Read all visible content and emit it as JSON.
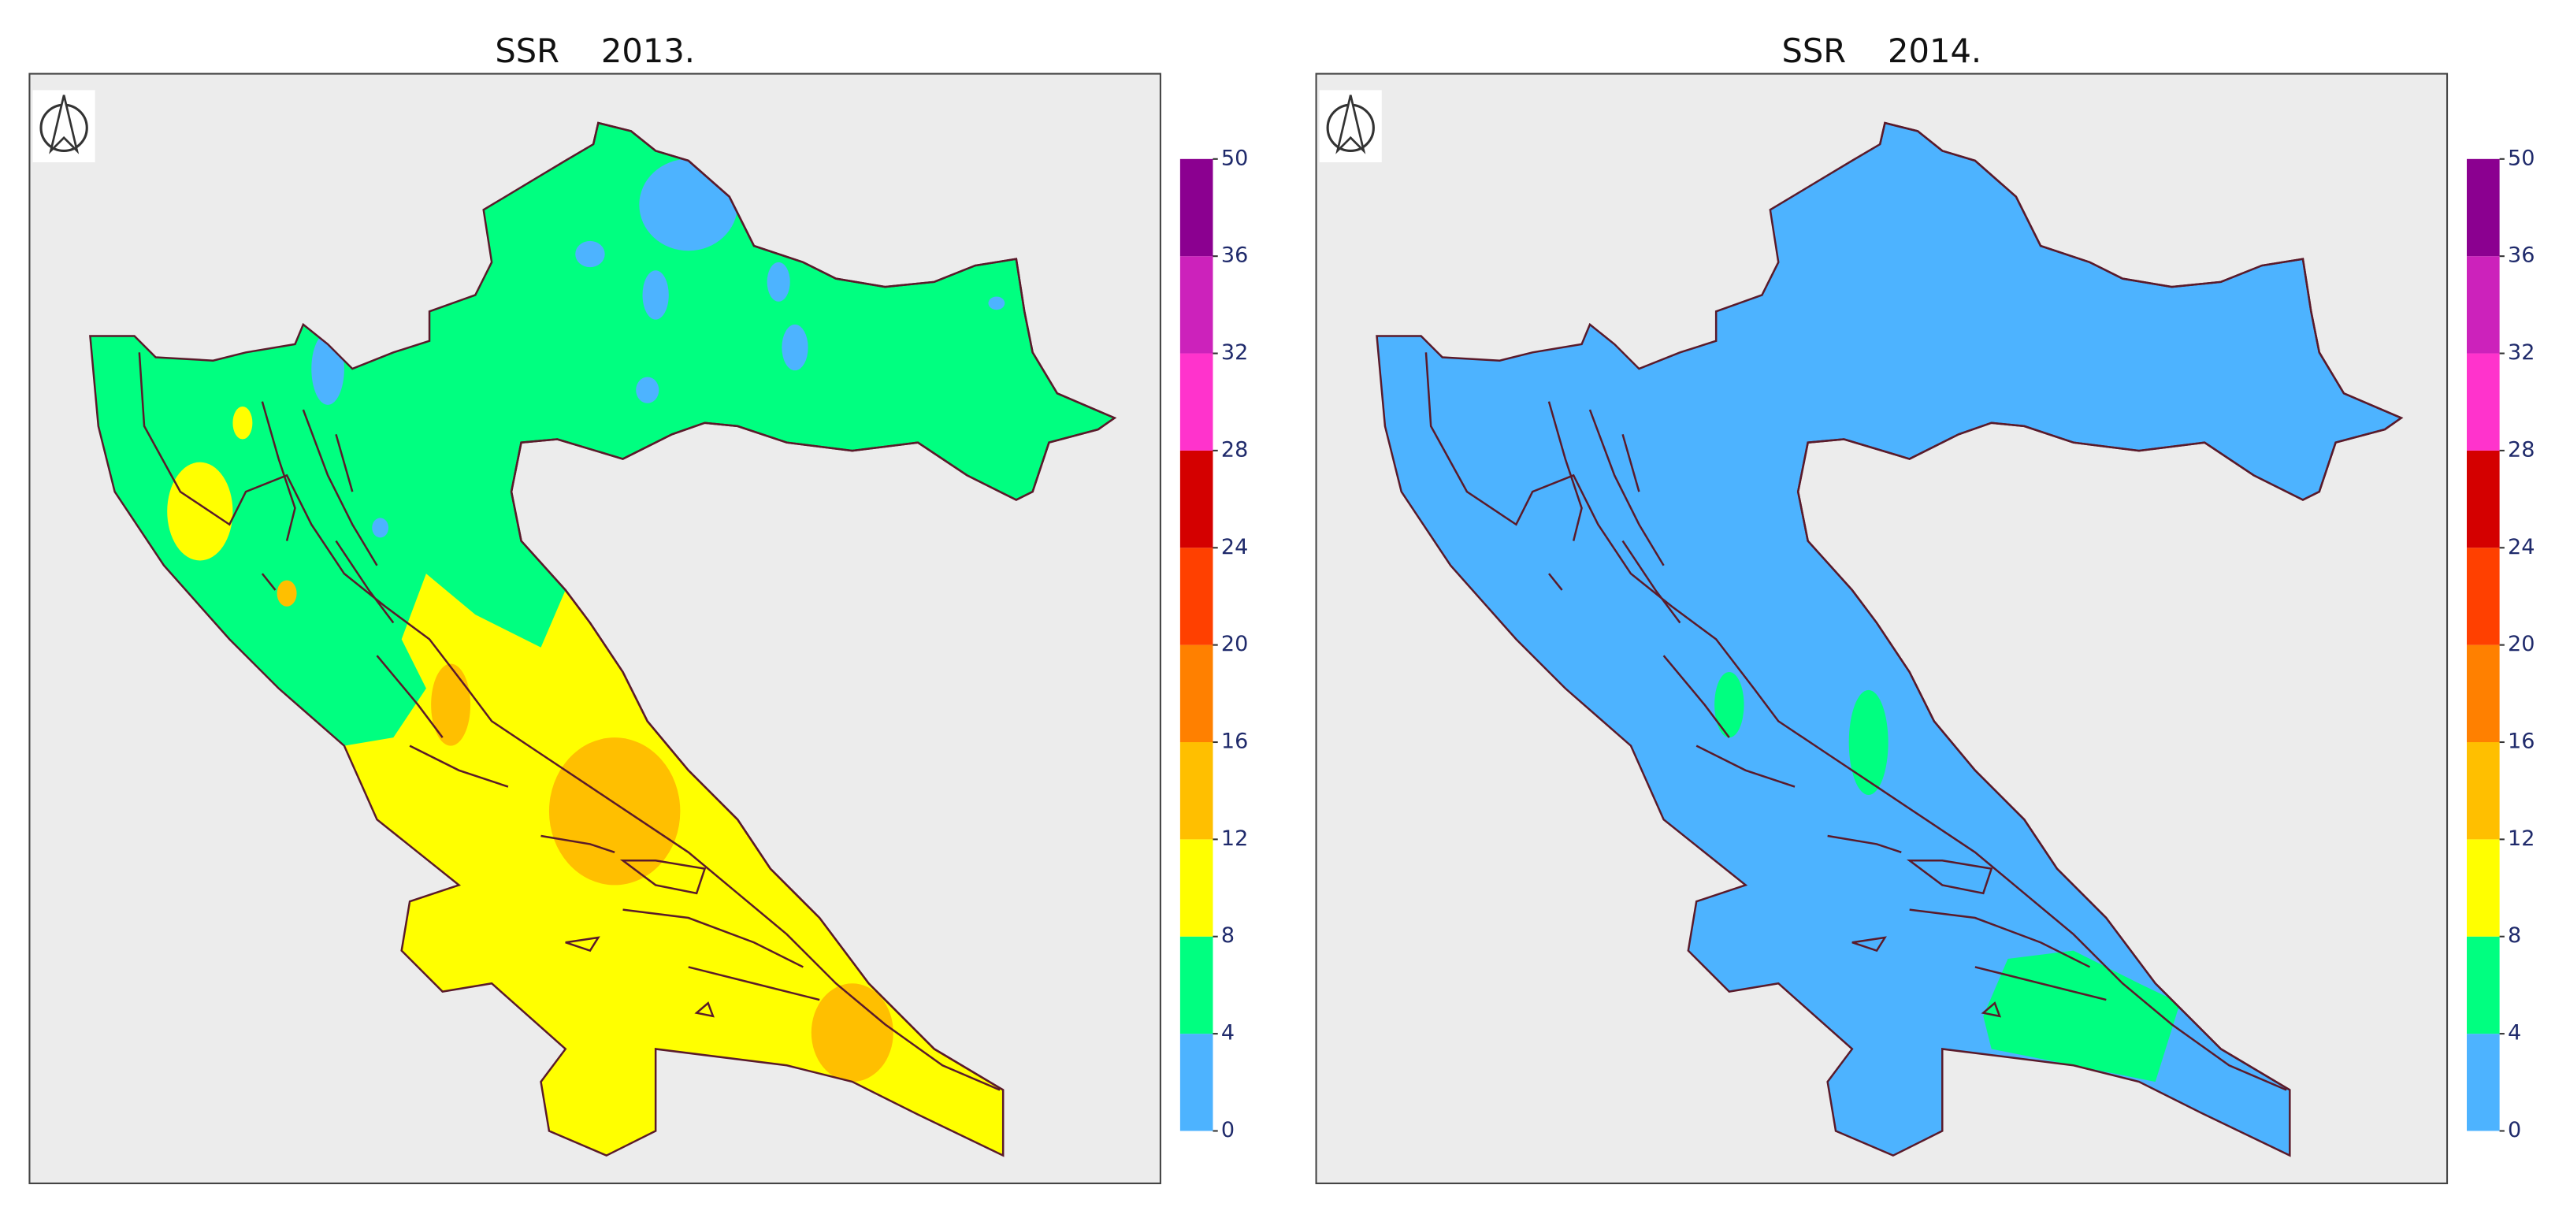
{
  "maps": [
    {
      "title": "SSR    2013.",
      "colorbar": {
        "ticks": [
          0,
          4,
          8,
          12,
          16,
          20,
          24,
          28,
          32,
          36,
          50
        ],
        "colors": [
          "#4db3ff",
          "#00ff80",
          "#ffff00",
          "#ffbf00",
          "#ff8000",
          "#ff4000",
          "#d40000",
          "#ff33cc",
          "#cc22bb",
          "#8b0090"
        ]
      }
    },
    {
      "title": "SSR    2014.",
      "colorbar": {
        "ticks": [
          0,
          4,
          8,
          12,
          16,
          20,
          24,
          28,
          32,
          36,
          50
        ],
        "colors": [
          "#4db3ff",
          "#00ff80",
          "#ffff00",
          "#ffbf00",
          "#ff8000",
          "#ff4000",
          "#d40000",
          "#ff33cc",
          "#cc22bb",
          "#8b0090"
        ]
      }
    }
  ]
}
